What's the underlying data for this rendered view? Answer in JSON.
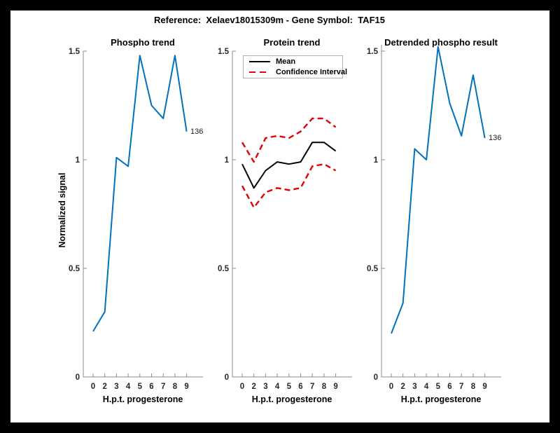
{
  "window": {
    "suptitle": "Reference:  Xelaev18015309m - Gene Symbol:  TAF15"
  },
  "colors": {
    "background": "#000000",
    "canvas": "#ffffff",
    "blue": "#0072bd",
    "red": "#e60000",
    "black": "#000000",
    "axis": "#8c8c8c",
    "tick_text": "#262626"
  },
  "axes": {
    "x_ticks": [
      "0",
      "2",
      "3",
      "4",
      "5",
      "6",
      "7",
      "8",
      "9"
    ],
    "y_ticks": [
      "0",
      "0.5",
      "1",
      "1.5"
    ],
    "y_tick_values": [
      0,
      0.5,
      1,
      1.5
    ]
  },
  "legend": {
    "position": "top-left-inside",
    "items": [
      {
        "label": "Mean",
        "color": "#000000",
        "dash": false
      },
      {
        "label": "Confidence Interval",
        "color": "#e60000",
        "dash": true
      }
    ]
  },
  "chart_data": [
    {
      "type": "line",
      "title": "Phospho trend",
      "xlabel": "H.p.t. progesterone",
      "ylabel": "Normalized signal",
      "categories": [
        "0",
        "2",
        "3",
        "4",
        "5",
        "6",
        "7",
        "8",
        "9"
      ],
      "ylim": [
        0,
        1.5
      ],
      "grid": false,
      "end_label": "136",
      "series": [
        {
          "name": "phospho-signal",
          "color": "#0072bd",
          "dash": false,
          "width": 2,
          "values": [
            0.21,
            0.3,
            1.01,
            0.97,
            1.48,
            1.25,
            1.19,
            1.48,
            1.13
          ]
        }
      ]
    },
    {
      "type": "line",
      "title": "Protein trend",
      "xlabel": "H.p.t. progesterone",
      "categories": [
        "0",
        "2",
        "3",
        "4",
        "5",
        "6",
        "7",
        "8",
        "9"
      ],
      "ylim": [
        0,
        1.5
      ],
      "grid": false,
      "series": [
        {
          "name": "confidence-upper",
          "color": "#e60000",
          "dash": true,
          "width": 2.4,
          "values": [
            1.08,
            0.99,
            1.1,
            1.11,
            1.1,
            1.13,
            1.19,
            1.19,
            1.15
          ]
        },
        {
          "name": "mean",
          "color": "#000000",
          "dash": false,
          "width": 2,
          "values": [
            0.98,
            0.87,
            0.95,
            0.99,
            0.98,
            0.99,
            1.08,
            1.08,
            1.04
          ]
        },
        {
          "name": "confidence-lower",
          "color": "#e60000",
          "dash": true,
          "width": 2.4,
          "values": [
            0.88,
            0.78,
            0.85,
            0.87,
            0.86,
            0.87,
            0.97,
            0.98,
            0.95
          ]
        }
      ]
    },
    {
      "type": "line",
      "title": "Detrended phospho result",
      "xlabel": "H.p.t. progesterone",
      "categories": [
        "0",
        "2",
        "3",
        "4",
        "5",
        "6",
        "7",
        "8",
        "9"
      ],
      "ylim": [
        0,
        1.53
      ],
      "grid": false,
      "end_label": "136",
      "series": [
        {
          "name": "detrended-signal",
          "color": "#0072bd",
          "dash": false,
          "width": 2,
          "values": [
            0.2,
            0.34,
            1.05,
            1.0,
            1.52,
            1.26,
            1.11,
            1.39,
            1.1
          ]
        }
      ]
    }
  ]
}
